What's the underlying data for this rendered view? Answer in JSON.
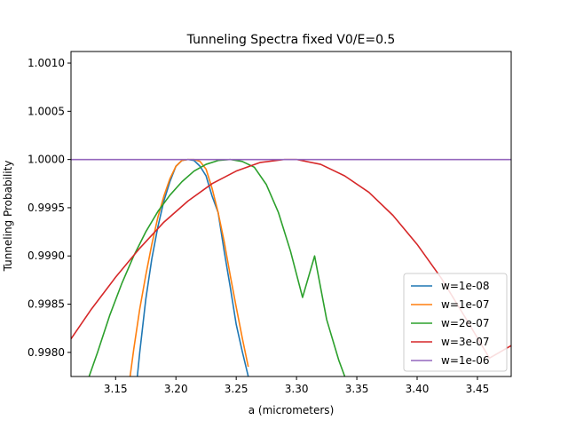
{
  "chart_data": {
    "type": "line",
    "title": "Tunneling Spectra fixed V0/E=0.5",
    "xlabel": "a (micrometers)",
    "ylabel": "Tunneling Probability",
    "xlim": [
      3.113,
      3.478
    ],
    "ylim": [
      0.99775,
      1.00112
    ],
    "xticks": [
      3.15,
      3.2,
      3.25,
      3.3,
      3.35,
      3.4,
      3.45
    ],
    "xtick_labels": [
      "3.15",
      "3.20",
      "3.25",
      "3.30",
      "3.35",
      "3.40",
      "3.45"
    ],
    "yticks": [
      0.998,
      0.9985,
      0.999,
      0.9995,
      1.0,
      1.0005,
      1.001
    ],
    "ytick_labels": [
      "0.9980",
      "0.9985",
      "0.9990",
      "0.9995",
      "1.0000",
      "1.0005",
      "1.0010"
    ],
    "grid": false,
    "legend_position": "lower-right",
    "series": [
      {
        "name": "w=1e-08",
        "color": "#1f77b4",
        "x": [
          3.168,
          3.17,
          3.175,
          3.18,
          3.185,
          3.19,
          3.195,
          3.2,
          3.205,
          3.21,
          3.215,
          3.22,
          3.225,
          3.23,
          3.235,
          3.24,
          3.245,
          3.25,
          3.255,
          3.26
        ],
        "y": [
          0.99775,
          0.998,
          0.99855,
          0.99897,
          0.9993,
          0.99957,
          0.99977,
          0.99993,
          0.99999,
          1.0,
          0.99999,
          0.99993,
          0.99983,
          0.99962,
          0.99945,
          0.99905,
          0.99868,
          0.99829,
          0.99801,
          0.99775
        ]
      },
      {
        "name": "w=1e-07",
        "color": "#ff7f0e",
        "x": [
          3.162,
          3.165,
          3.17,
          3.175,
          3.18,
          3.185,
          3.19,
          3.195,
          3.2,
          3.205,
          3.21,
          3.215,
          3.22,
          3.225,
          3.23,
          3.235,
          3.24,
          3.245,
          3.25,
          3.255,
          3.26
        ],
        "y": [
          0.99775,
          0.99803,
          0.99845,
          0.9988,
          0.99912,
          0.9994,
          0.99962,
          0.9998,
          0.99993,
          0.99999,
          1.0,
          1.0,
          0.99998,
          0.9999,
          0.9997,
          0.99945,
          0.99915,
          0.9988,
          0.99847,
          0.99815,
          0.99785
        ]
      },
      {
        "name": "w=2e-07",
        "color": "#2ca02c",
        "x": [
          3.128,
          3.135,
          3.145,
          3.155,
          3.165,
          3.175,
          3.185,
          3.195,
          3.205,
          3.215,
          3.225,
          3.235,
          3.245,
          3.255,
          3.265,
          3.275,
          3.285,
          3.295,
          3.305,
          3.315,
          3.325,
          3.335,
          3.34
        ],
        "y": [
          0.99775,
          0.998,
          0.99838,
          0.99871,
          0.999,
          0.99925,
          0.99946,
          0.99963,
          0.99977,
          0.99988,
          0.99995,
          0.99999,
          1.0,
          0.99998,
          0.99992,
          0.99974,
          0.99945,
          0.99905,
          0.99857,
          0.999,
          0.99834,
          0.99792,
          0.99775
        ]
      },
      {
        "name": "w=3e-07",
        "color": "#d62728",
        "x": [
          3.113,
          3.13,
          3.15,
          3.17,
          3.19,
          3.21,
          3.23,
          3.25,
          3.27,
          3.29,
          3.3,
          3.32,
          3.34,
          3.36,
          3.38,
          3.4,
          3.42,
          3.44,
          3.46,
          3.478
        ],
        "y": [
          0.99814,
          0.99845,
          0.99878,
          0.99908,
          0.99935,
          0.99957,
          0.99975,
          0.99988,
          0.99997,
          1.0,
          1.0,
          0.99995,
          0.99983,
          0.99966,
          0.99942,
          0.99912,
          0.99877,
          0.99836,
          0.99794,
          0.99807
        ]
      },
      {
        "name": "w=1e-06",
        "color": "#9467bd",
        "x": [
          3.113,
          3.478
        ],
        "y": [
          1.0,
          1.0
        ]
      }
    ]
  }
}
